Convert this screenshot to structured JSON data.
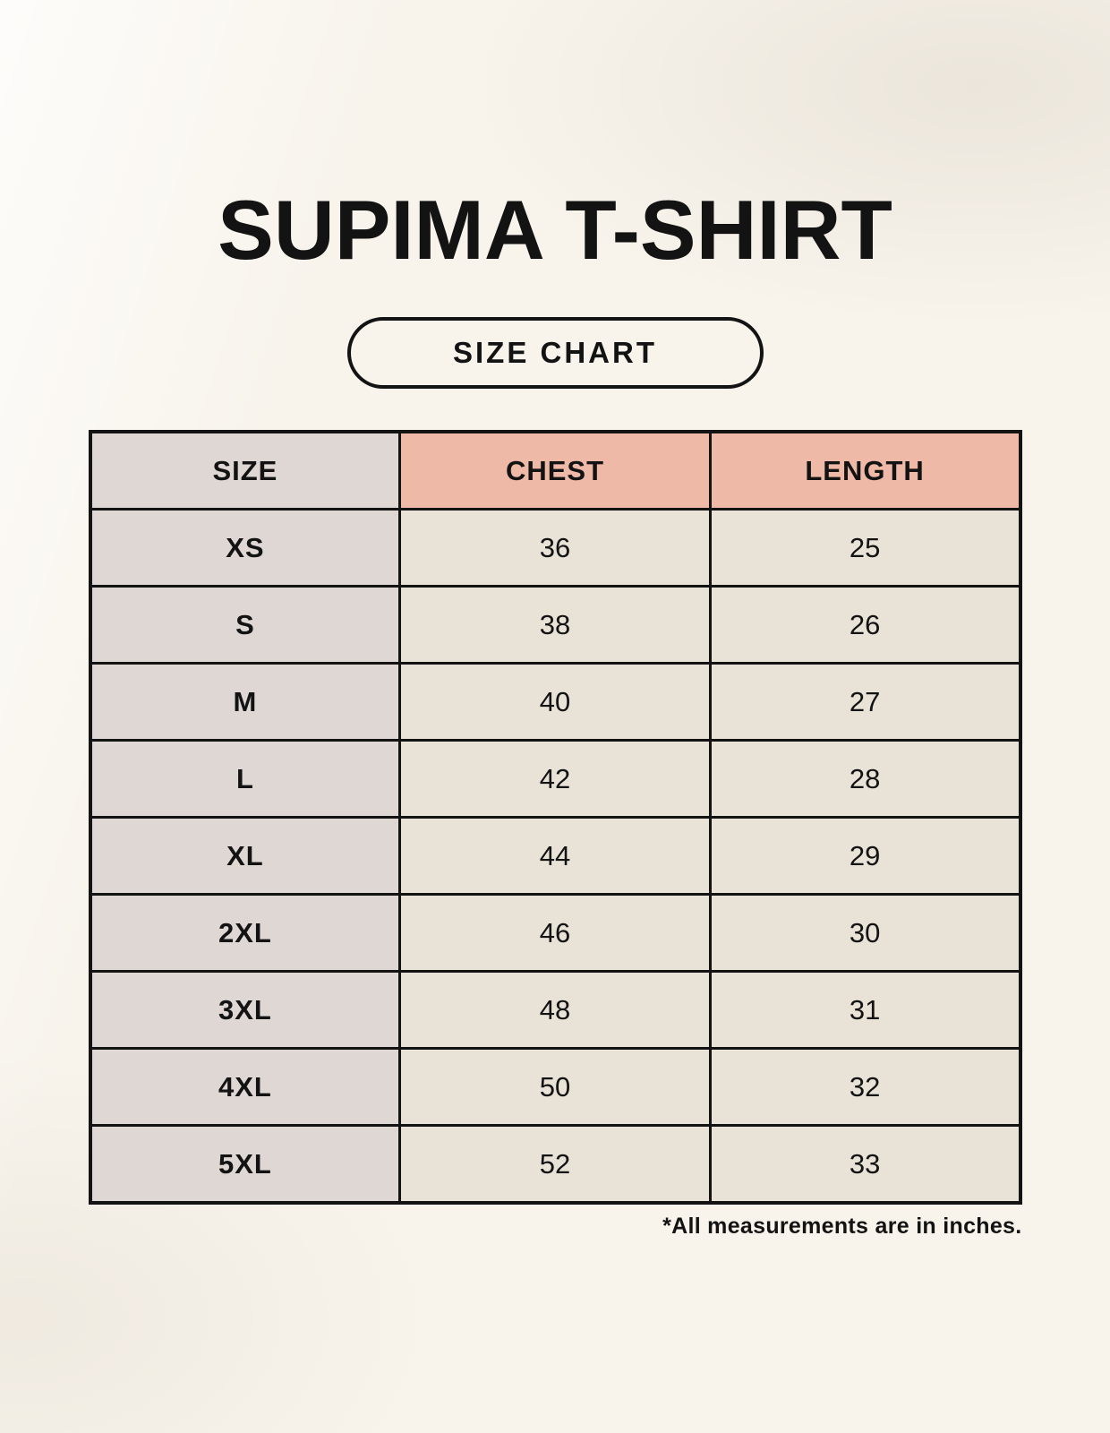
{
  "header": {
    "title": "SUPIMA T-SHIRT",
    "size_chart_button": "SIZE CHART"
  },
  "chart_data": {
    "type": "table",
    "title": "SUPIMA T-SHIRT",
    "columns": [
      "SIZE",
      "CHEST",
      "LENGTH"
    ],
    "rows": [
      [
        "XS",
        "36",
        "25"
      ],
      [
        "S",
        "38",
        "26"
      ],
      [
        "M",
        "40",
        "27"
      ],
      [
        "L",
        "42",
        "28"
      ],
      [
        "XL",
        "44",
        "29"
      ],
      [
        "2XL",
        "46",
        "30"
      ],
      [
        "3XL",
        "48",
        "31"
      ],
      [
        "4XL",
        "50",
        "32"
      ],
      [
        "5XL",
        "52",
        "33"
      ]
    ],
    "footnote": "*All measurements are in inches.",
    "layout_hints": {
      "accent_header_columns": [
        "CHEST",
        "LENGTH"
      ],
      "gridlines": "solid black, full grid",
      "alignment": "all cells centered"
    }
  },
  "colors": {
    "page_background": "#f8f4ec",
    "size_column_bg": "#ded7d3",
    "accent_header_bg": "#efb9a8",
    "value_cell_bg": "#e9e2d7",
    "border_and_text": "#131313"
  }
}
